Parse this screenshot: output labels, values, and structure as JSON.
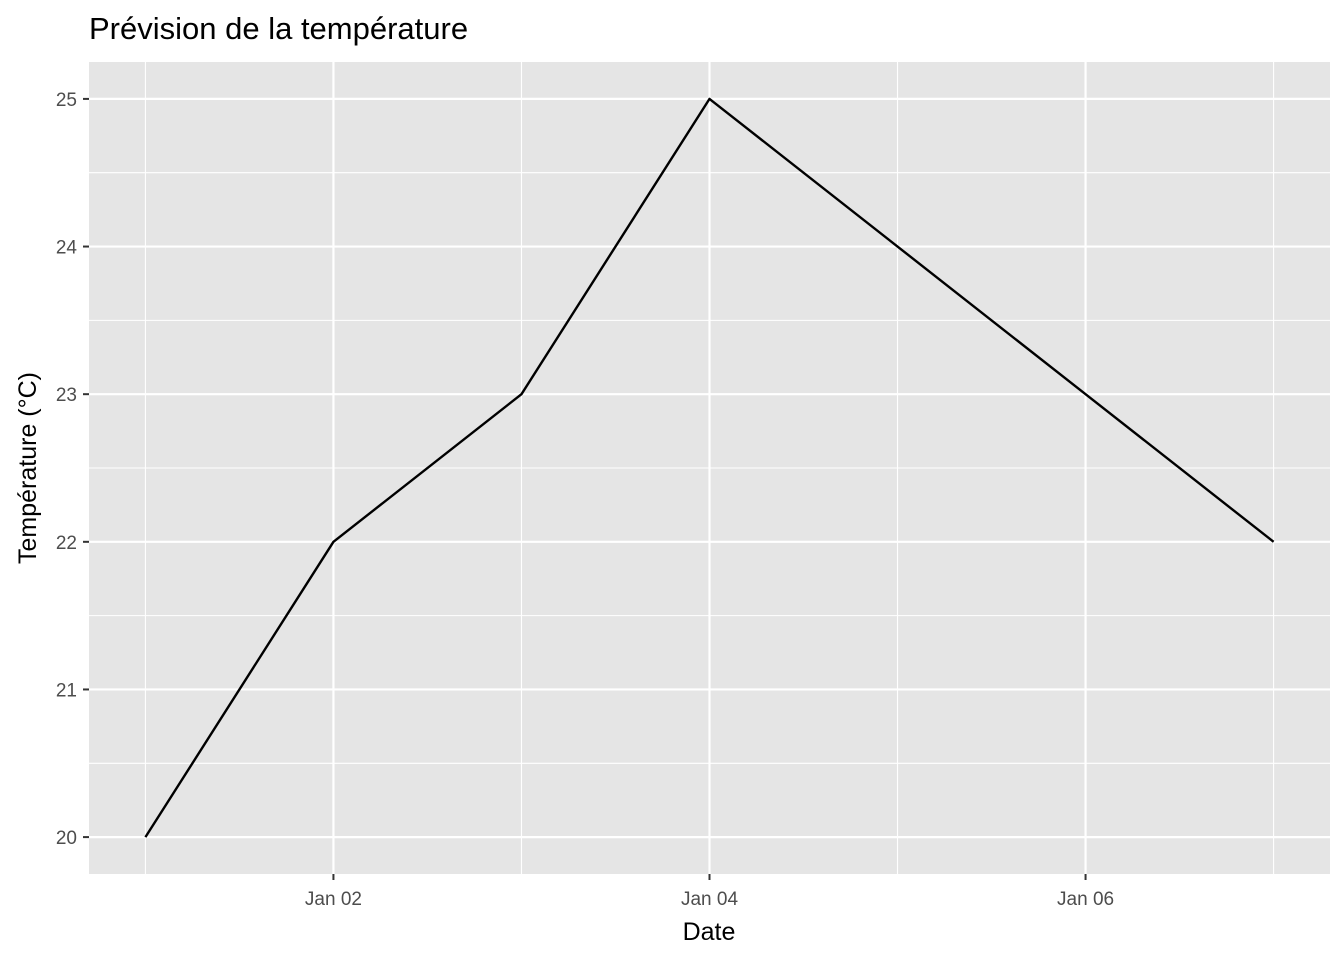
{
  "chart_data": {
    "type": "line",
    "title": "Prévision de la température",
    "xlabel": "Date",
    "ylabel": "Température (°C)",
    "x": [
      "Jan 01",
      "Jan 02",
      "Jan 03",
      "Jan 04",
      "Jan 05",
      "Jan 06",
      "Jan 07"
    ],
    "series": [
      {
        "values": [
          20,
          22,
          23,
          25,
          24,
          23,
          22
        ]
      }
    ],
    "x_ticks": [
      "Jan 02",
      "Jan 04",
      "Jan 06"
    ],
    "y_ticks": [
      20,
      21,
      22,
      23,
      24,
      25
    ],
    "ylim": [
      19.75,
      25.25
    ],
    "grid": true,
    "colors": {
      "panel": "#e5e5e5",
      "grid": "#ffffff",
      "line": "#000000",
      "tick_text": "#4d4d4d"
    }
  }
}
